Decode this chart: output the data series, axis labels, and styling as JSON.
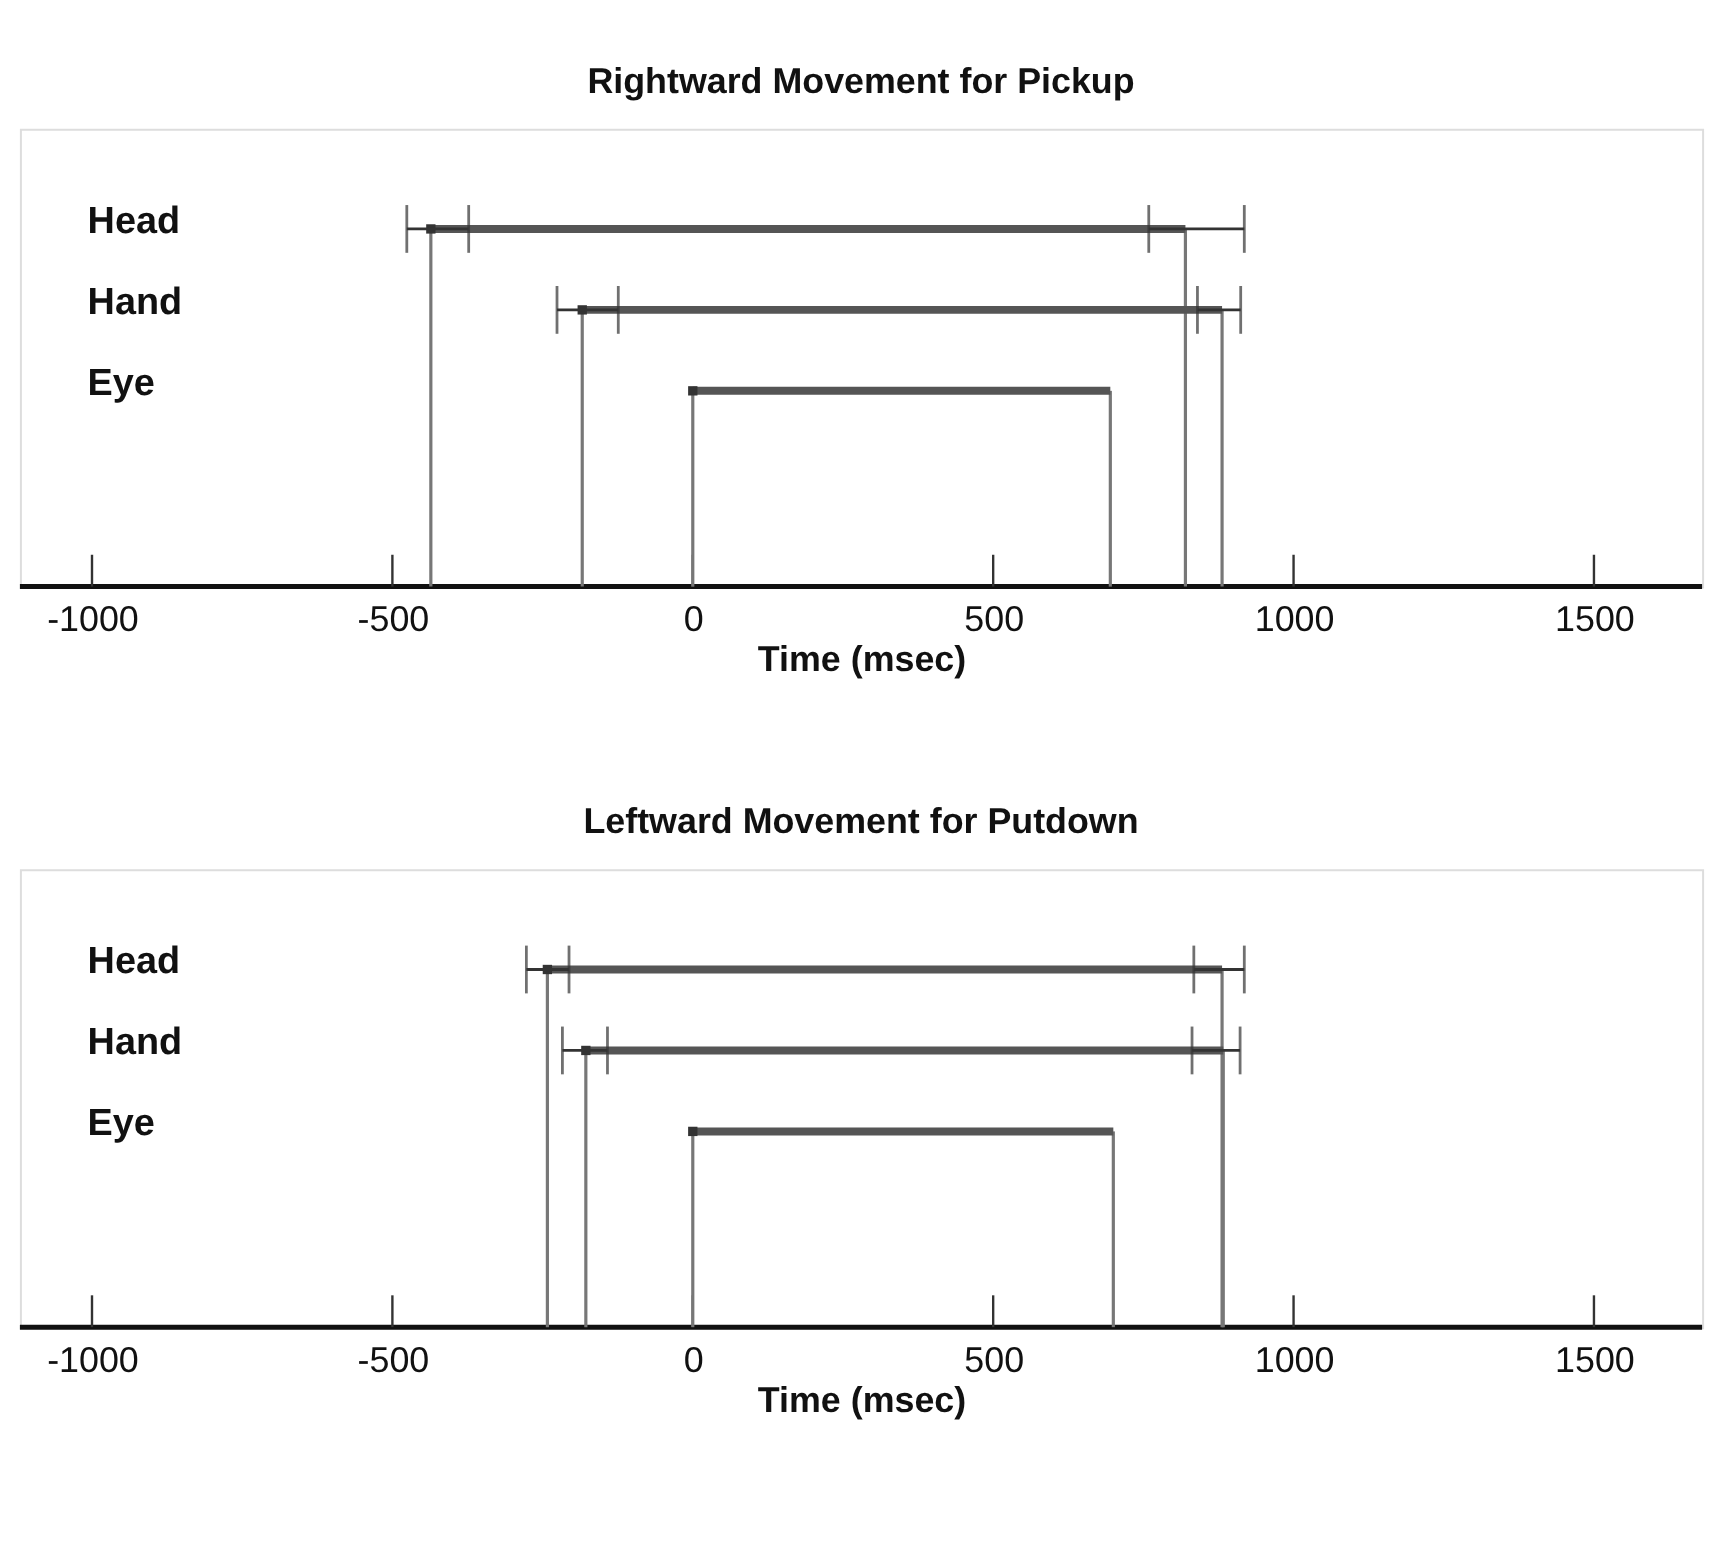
{
  "chart_data": [
    {
      "type": "bar",
      "title": "Rightward Movement for Pickup",
      "xlabel": "Time (msec)",
      "orientation": "horizontal",
      "categories": [
        "Head",
        "Hand",
        "Eye"
      ],
      "xlim": [
        -1120,
        1680
      ],
      "xticks": [
        -1000,
        -500,
        0,
        500,
        1000,
        1500
      ],
      "series": [
        {
          "color": "#555555",
          "base": [
            -436,
            -184,
            0
          ],
          "values": [
            1256,
            1065,
            695
          ],
          "errors": [
            [
              759,
              918
            ],
            [
              840,
              912
            ],
            null
          ]
        },
        {
          "type": "scatter",
          "marker": "square",
          "color": "#333333",
          "values": [
            -436,
            -184,
            0
          ],
          "errors": [
            [
              -476,
              -373
            ],
            [
              -226,
              -124
            ],
            null
          ]
        }
      ]
    },
    {
      "type": "bar",
      "title": "Leftward Movement for Putdown",
      "xlabel": "Time (msec)",
      "orientation": "horizontal",
      "categories": [
        "Head",
        "Hand",
        "Eye"
      ],
      "xlim": [
        -1120,
        1680
      ],
      "xticks": [
        -1000,
        -500,
        0,
        500,
        1000,
        1500
      ],
      "series": [
        {
          "color": "#555555",
          "base": [
            -242,
            -178,
            0
          ],
          "values": [
            1123,
            1061,
            700
          ],
          "errors": [
            [
              834,
              918
            ],
            [
              831,
              911
            ],
            null
          ]
        },
        {
          "type": "scatter",
          "marker": "square",
          "color": "#333333",
          "values": [
            -242,
            -178,
            0
          ],
          "errors": [
            [
              -277,
              -206
            ],
            [
              -217,
              -142
            ],
            null
          ]
        }
      ]
    }
  ]
}
